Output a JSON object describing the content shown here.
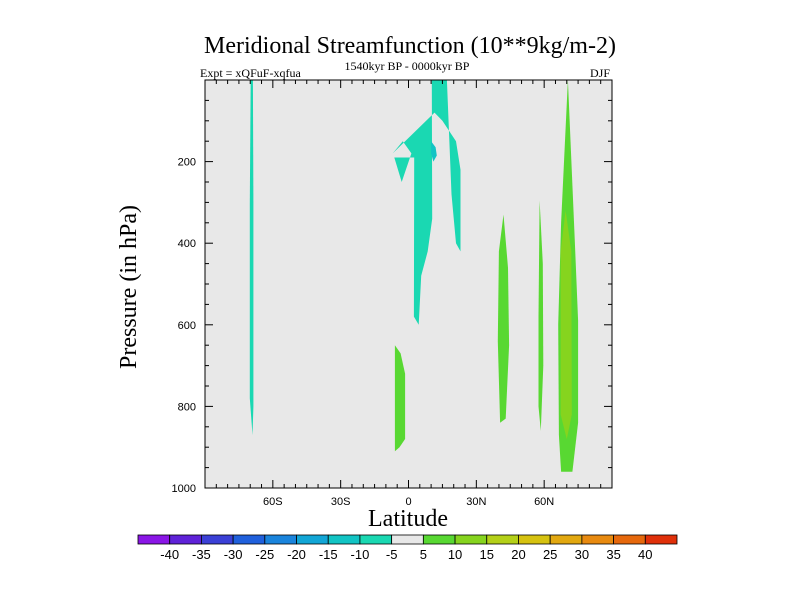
{
  "chart_data": {
    "type": "contour",
    "title": "Meridional Streamfunction (10**9kg/m-2)",
    "expt_label": "Expt = xQFuF-xqfua",
    "period_label": "1540kyr BP - 0000kyr BP",
    "season_label": "DJF",
    "xlabel": "Latitude",
    "ylabel": "Pressure (in hPa)",
    "xlim": [
      -90,
      90
    ],
    "ylim": [
      1000,
      0
    ],
    "x_ticks": [
      {
        "value": -60,
        "label": "60S"
      },
      {
        "value": -30,
        "label": "30S"
      },
      {
        "value": 0,
        "label": "0"
      },
      {
        "value": 30,
        "label": "30N"
      },
      {
        "value": 60,
        "label": "60N"
      }
    ],
    "y_ticks": [
      {
        "value": 200,
        "label": "200"
      },
      {
        "value": 400,
        "label": "400"
      },
      {
        "value": 600,
        "label": "600"
      },
      {
        "value": 800,
        "label": "800"
      },
      {
        "value": 1000,
        "label": "1000"
      }
    ],
    "colorbar": {
      "labels": [
        "-40",
        "-35",
        "-30",
        "-25",
        "-20",
        "-15",
        "-10",
        "-5",
        "5",
        "10",
        "15",
        "20",
        "25",
        "30",
        "35",
        "40"
      ],
      "colors": [
        "#8a16e6",
        "#5f22d8",
        "#3b40d6",
        "#2060dc",
        "#1a84dc",
        "#12a6d6",
        "#12c4c4",
        "#1ad8b2",
        "#e8e8e8",
        "#58d832",
        "#86d41e",
        "#b4d018",
        "#d6c210",
        "#e2a810",
        "#e88a10",
        "#e6680c",
        "#e0300a"
      ]
    },
    "regions": [
      {
        "name": "neg-strip-64s",
        "level": "-10 to -5",
        "fill": "#1ad8b2",
        "points": [
          [
            -69,
            870
          ],
          [
            -70.2,
            780
          ],
          [
            -70.2,
            300
          ],
          [
            -69.8,
            0
          ],
          [
            -68.8,
            0
          ],
          [
            -68.6,
            300
          ],
          [
            -68.6,
            800
          ]
        ]
      },
      {
        "name": "neg-tropical-upper",
        "level": "-10 to -5",
        "fill": "#1ad8b2",
        "points": [
          [
            -7,
            180
          ],
          [
            -2.5,
            150
          ],
          [
            1.3,
            180
          ],
          [
            -3,
            250
          ],
          [
            -6.3,
            190
          ],
          [
            2.5,
            190
          ],
          [
            2.4,
            580
          ],
          [
            4.5,
            600
          ],
          [
            5.6,
            480
          ],
          [
            8.5,
            420
          ],
          [
            10.5,
            340
          ],
          [
            10.3,
            0
          ],
          [
            17,
            0
          ],
          [
            19,
            280
          ],
          [
            21,
            400
          ],
          [
            23,
            420
          ],
          [
            23,
            220
          ],
          [
            21,
            150
          ],
          [
            15,
            100
          ],
          [
            11.5,
            80
          ]
        ]
      },
      {
        "name": "neg-tropical-core",
        "level": "-15 to -10",
        "fill": "#12c4c4",
        "points": [
          [
            10,
            150
          ],
          [
            12,
            165
          ],
          [
            12.5,
            185
          ],
          [
            11,
            200
          ],
          [
            10,
            180
          ]
        ]
      },
      {
        "name": "pos-equatorial-lower",
        "level": "5 to 10",
        "fill": "#58d832",
        "points": [
          [
            -6,
            910
          ],
          [
            -6,
            650
          ],
          [
            -3.5,
            670
          ],
          [
            -1.5,
            720
          ],
          [
            -1.5,
            880
          ],
          [
            -4,
            900
          ]
        ]
      },
      {
        "name": "pos-strip-40n",
        "level": "5 to 10",
        "fill": "#58d832",
        "points": [
          [
            40,
            420
          ],
          [
            42,
            330
          ],
          [
            44,
            460
          ],
          [
            44.5,
            650
          ],
          [
            43,
            830
          ],
          [
            40.5,
            840
          ],
          [
            39.5,
            640
          ]
        ]
      },
      {
        "name": "pos-strip-57n",
        "level": "5 to 10",
        "fill": "#58d832",
        "points": [
          [
            57.5,
            580
          ],
          [
            58,
            295
          ],
          [
            59.4,
            450
          ],
          [
            59.6,
            700
          ],
          [
            58.5,
            860
          ],
          [
            57.5,
            800
          ]
        ]
      },
      {
        "name": "pos-jet-70n-outer",
        "level": "5 to 10",
        "fill": "#58d832",
        "points": [
          [
            66.2,
            600
          ],
          [
            67.5,
            350
          ],
          [
            70.5,
            0
          ],
          [
            73.6,
            400
          ],
          [
            75,
            590
          ],
          [
            75,
            840
          ],
          [
            72.5,
            960
          ],
          [
            67.5,
            960
          ],
          [
            66.5,
            870
          ]
        ]
      },
      {
        "name": "pos-jet-70n-inner",
        "level": "10 to 15",
        "fill": "#86d41e",
        "points": [
          [
            67.3,
            420
          ],
          [
            69.5,
            320
          ],
          [
            72,
            420
          ],
          [
            72.2,
            820
          ],
          [
            70,
            880
          ],
          [
            67.3,
            820
          ]
        ]
      }
    ]
  }
}
